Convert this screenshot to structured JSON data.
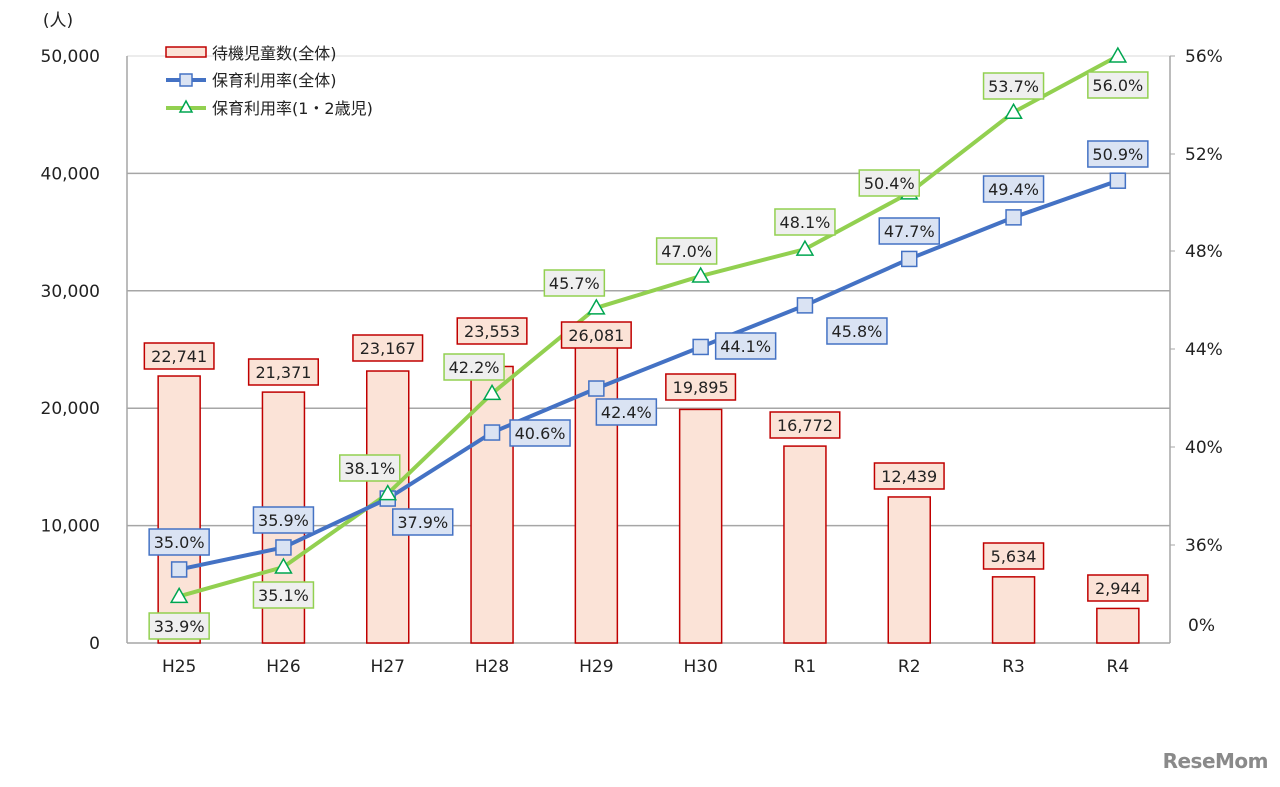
{
  "chart_data": {
    "type": "bar+line",
    "title": "",
    "categories": [
      "H25",
      "H26",
      "H27",
      "H28",
      "H29",
      "H30",
      "R1",
      "R2",
      "R3",
      "R4"
    ],
    "series": [
      {
        "name": "待機児童数(全体)",
        "type": "bar",
        "axis": "left",
        "values": [
          22741,
          21371,
          23167,
          23553,
          26081,
          19895,
          16772,
          12439,
          5634,
          2944
        ],
        "labels": [
          "22,741",
          "21,371",
          "23,167",
          "23,553",
          "26,081",
          "19,895",
          "16,772",
          "12,439",
          "5,634",
          "2,944"
        ],
        "color": "#c00000",
        "fill": "#fbe3d7"
      },
      {
        "name": "保育利用率(全体)",
        "type": "line",
        "axis": "right",
        "marker": "square",
        "values": [
          35.0,
          35.9,
          37.9,
          40.6,
          42.4,
          44.1,
          45.8,
          47.7,
          49.4,
          50.9
        ],
        "labels": [
          "35.0%",
          "35.9%",
          "37.9%",
          "40.6%",
          "42.4%",
          "44.1%",
          "45.8%",
          "47.7%",
          "49.4%",
          "50.9%"
        ],
        "color": "#4472c4",
        "label_fill": "#dae3f3"
      },
      {
        "name": "保育利用率(1・2歳児)",
        "type": "line",
        "axis": "right",
        "marker": "triangle",
        "values": [
          33.9,
          35.1,
          38.1,
          42.2,
          45.7,
          47.0,
          48.1,
          50.4,
          53.7,
          56.0
        ],
        "labels": [
          "33.9%",
          "35.1%",
          "38.1%",
          "42.2%",
          "45.7%",
          "47.0%",
          "48.1%",
          "50.4%",
          "53.7%",
          "56.0%"
        ],
        "color": "#92d050",
        "marker_color": "#00a651",
        "label_fill": "#efefef"
      }
    ],
    "ylabel": "(人)",
    "y_left_ticks": [
      "0",
      "10,000",
      "20,000",
      "30,000",
      "40,000",
      "50,000"
    ],
    "ylim_left": [
      0,
      50000
    ],
    "y_right_ticks": [
      "0%",
      "36%",
      "40%",
      "44%",
      "48%",
      "52%",
      "56%"
    ],
    "ylim_right": [
      32,
      56
    ],
    "right_axis_note": "broken scale: 0% at bottom, 36%–56% linear",
    "grid": true,
    "legend_position": "top-left inside"
  },
  "watermark": "ReseMom"
}
